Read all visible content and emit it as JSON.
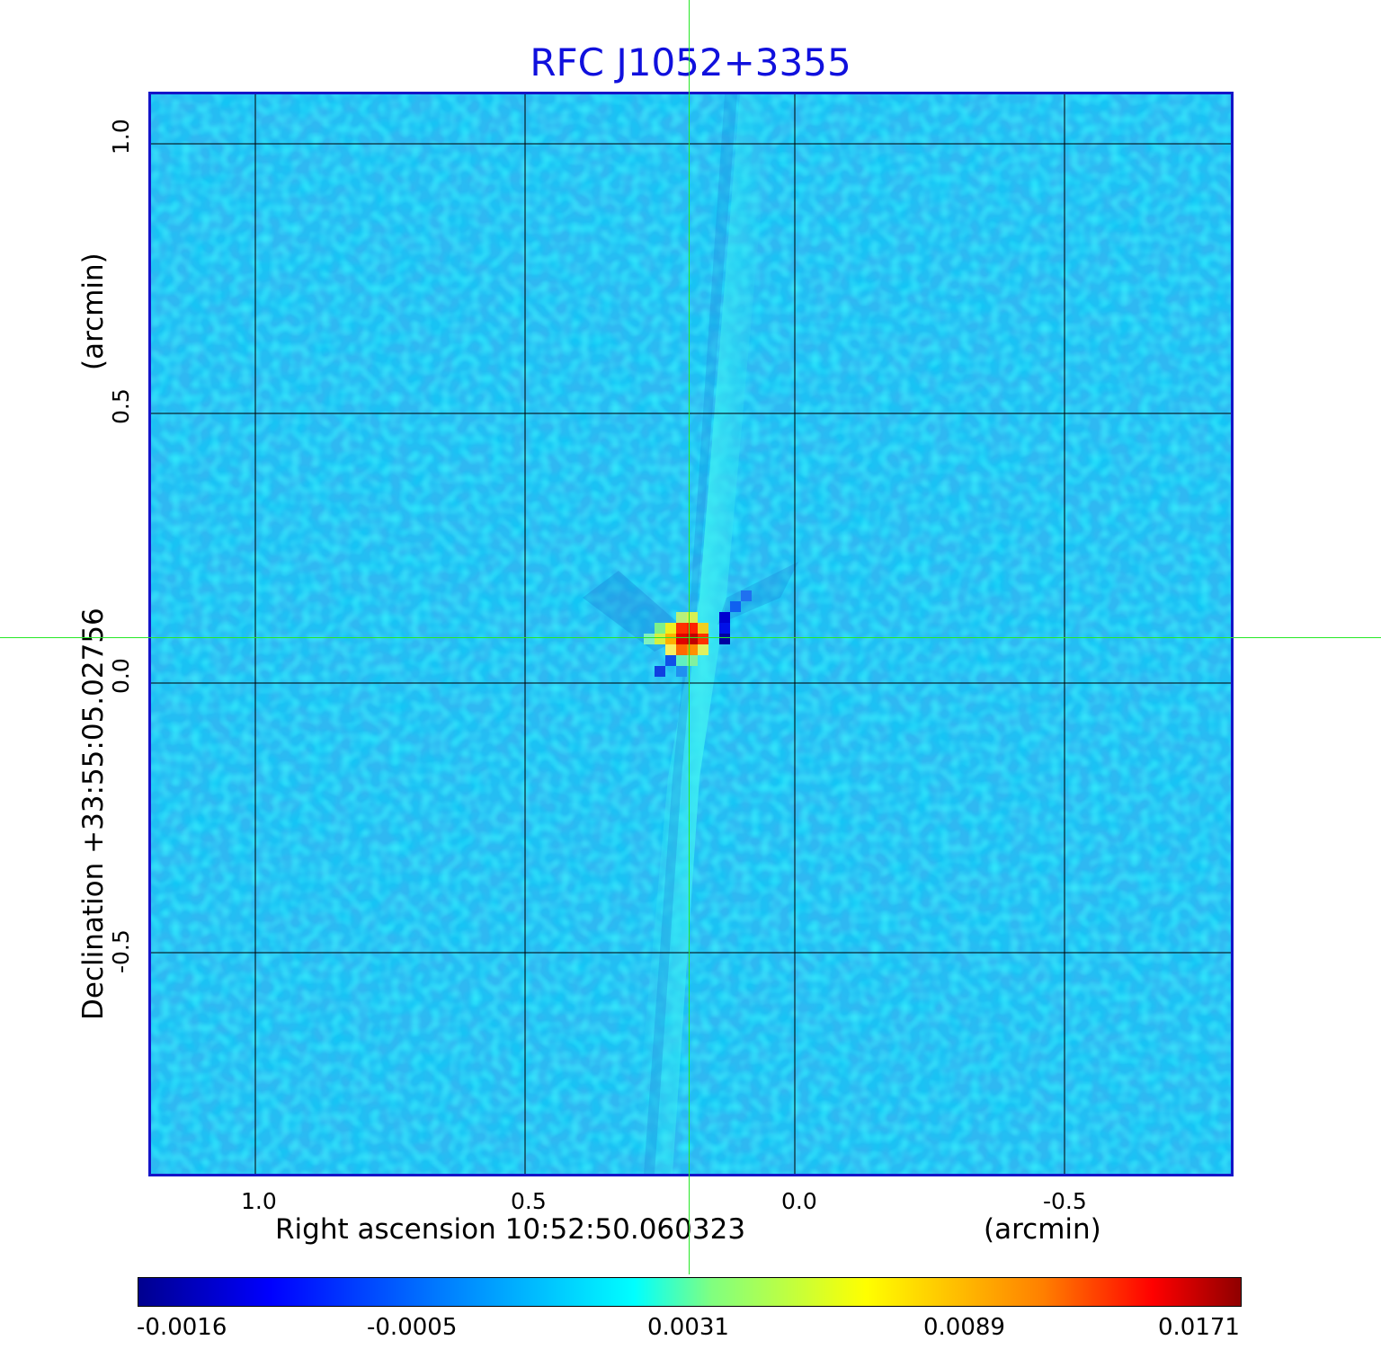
{
  "title": "RFC J1052+3355",
  "x_axis": {
    "label": "Right ascension  10:52:50.060323",
    "unit": "(arcmin)",
    "ticks": [
      "1.0",
      "0.5",
      "0.0",
      "-0.5"
    ]
  },
  "y_axis": {
    "label": "Declination  +33:55:05.02756",
    "unit": "(arcmin)",
    "ticks": [
      "1.0",
      "0.5",
      "0.0",
      "-0.5"
    ]
  },
  "colorbar": {
    "labels": [
      "-0.0016",
      "-0.0005",
      "0.0031",
      "0.0089",
      "0.0171"
    ],
    "colormap": "jet"
  },
  "colors": {
    "title": "#1010dd",
    "frame": "#1414c8",
    "crosshair": "#27e827",
    "background_noise": "#2fb8f2"
  }
}
